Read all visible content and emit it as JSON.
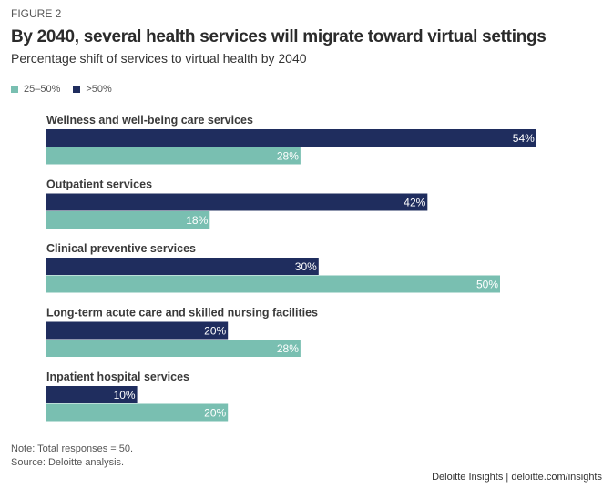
{
  "figure_label": "FIGURE 2",
  "colors": {
    "gt50": "#1f2d5e",
    "r25_50": "#79bfb1"
  },
  "chart_data": {
    "type": "bar",
    "orientation": "horizontal",
    "title": "By 2040, several health services will migrate toward virtual settings",
    "subtitle": "Percentage shift of services to virtual health by 2040",
    "categories": [
      "Wellness and well-being care services",
      "Outpatient services",
      "Clinical preventive services",
      "Long-term acute care and skilled nursing facilities",
      "Inpatient hospital services"
    ],
    "series": [
      {
        "name": ">50%",
        "values": [
          54,
          42,
          30,
          20,
          10
        ],
        "labels": [
          "54%",
          "42%",
          "30%",
          "20%",
          "10%"
        ]
      },
      {
        "name": "25–50%",
        "values": [
          28,
          18,
          50,
          28,
          20
        ],
        "labels": [
          "28%",
          "18%",
          "50%",
          "28%",
          "20%"
        ]
      }
    ],
    "legend": {
      "placement": "top-left",
      "entries": [
        "25–50%",
        ">50%"
      ]
    },
    "grid": false
  },
  "note": "Note: Total responses = 50.",
  "source": "Source: Deloitte analysis.",
  "credit": "Deloitte Insights | deloitte.com/insights"
}
